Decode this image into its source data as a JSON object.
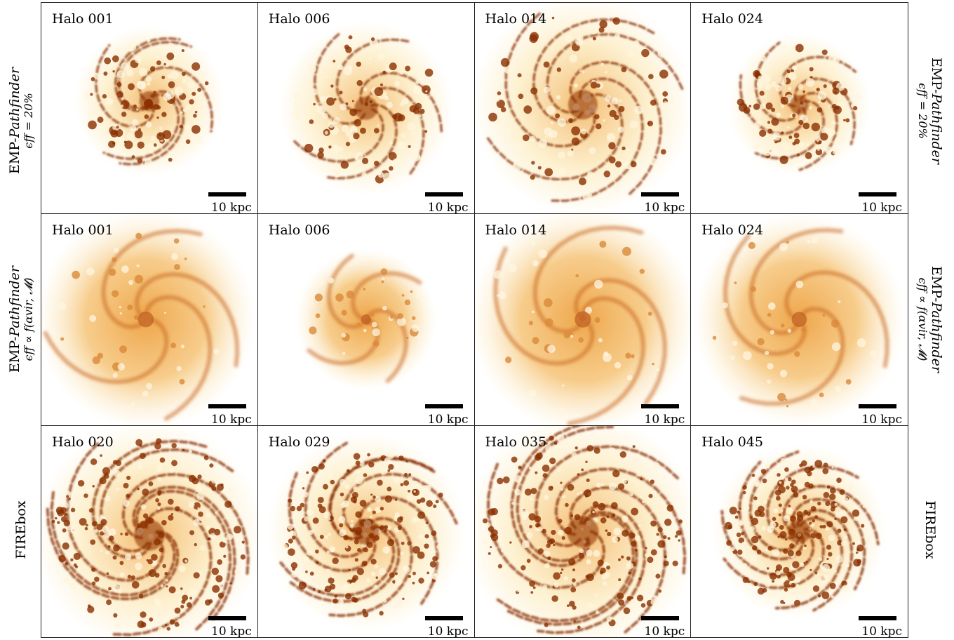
{
  "rows": [
    {
      "label_line1_prefix": "EMP-",
      "label_line1_italic": "Pathfinder",
      "label_line2": "ϵff = 20%",
      "panels": [
        {
          "label": "Halo 001",
          "scale": "10 kpc",
          "style": "compact"
        },
        {
          "label": "Halo 006",
          "scale": "10 kpc",
          "style": "compact"
        },
        {
          "label": "Halo 014",
          "scale": "10 kpc",
          "style": "compact"
        },
        {
          "label": "Halo 024",
          "scale": "10 kpc",
          "style": "compact"
        }
      ]
    },
    {
      "label_line1_prefix": "EMP-",
      "label_line1_italic": "Pathfinder",
      "label_line2": "ϵff ∝ f(αvir, 𝓜)",
      "panels": [
        {
          "label": "Halo 001",
          "scale": "10 kpc",
          "style": "smooth"
        },
        {
          "label": "Halo 006",
          "scale": "10 kpc",
          "style": "smooth"
        },
        {
          "label": "Halo 014",
          "scale": "10 kpc",
          "style": "smooth"
        },
        {
          "label": "Halo 024",
          "scale": "10 kpc",
          "style": "smooth"
        }
      ]
    },
    {
      "label_line1_prefix": "FIREbox",
      "label_line1_italic": "",
      "label_line2": "",
      "panels": [
        {
          "label": "Halo 020",
          "scale": "10 kpc",
          "style": "clumpy"
        },
        {
          "label": "Halo 029",
          "scale": "10 kpc",
          "style": "clumpy"
        },
        {
          "label": "Halo 035",
          "scale": "10 kpc",
          "style": "clumpy"
        },
        {
          "label": "Halo 045",
          "scale": "10 kpc",
          "style": "clumpy"
        }
      ]
    }
  ],
  "colors": {
    "background": "#ffffff",
    "light": "#fdeec7",
    "mid": "#eea64b",
    "dark": "#8a2f00",
    "frame": "#222222"
  }
}
